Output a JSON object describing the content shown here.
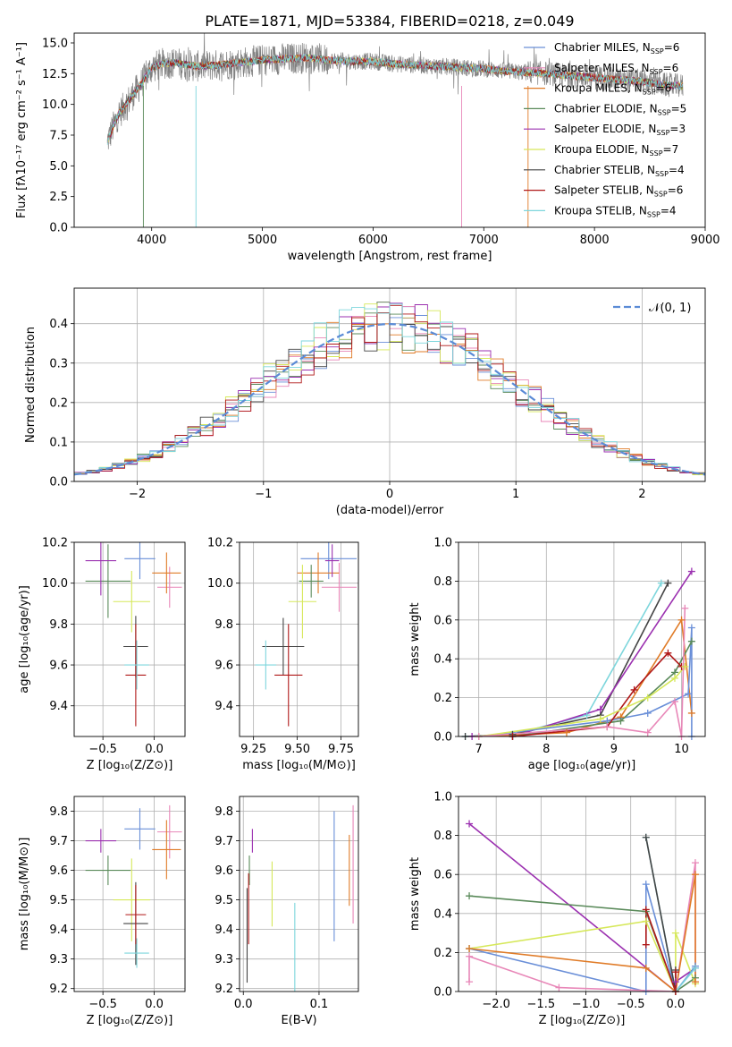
{
  "colors": {
    "Chabrier MILES": "#6a8fd8",
    "Salpeter MILES": "#e887b8",
    "Kroupa MILES": "#e07b27",
    "Chabrier ELODIE": "#5a8a5a",
    "Salpeter ELODIE": "#9b30b0",
    "Kroupa ELODIE": "#d6e85a",
    "Chabrier STELIB": "#444444",
    "Salpeter STELIB": "#b01818",
    "Kroupa STELIB": "#7dd6dc",
    "data": "#808080",
    "normal": "#5b8bd6"
  },
  "chart_data": [
    {
      "type": "line",
      "title": "PLATE=1871, MJD=53384, FIBERID=0218, z=0.049",
      "xlabel": "wavelength [Angstrom, rest frame]",
      "ylabel": "Flux [fλ10⁻¹⁷ erg cm⁻² s⁻¹ A⁻¹]",
      "xlim": [
        3300,
        9000
      ],
      "ylim": [
        0,
        15.8
      ],
      "xticks": [
        4000,
        5000,
        6000,
        7000,
        8000,
        9000
      ],
      "yticks": [
        0.0,
        2.5,
        5.0,
        7.5,
        10.0,
        12.5,
        15.0
      ],
      "grid": false,
      "legend_position": "top-right",
      "legend": [
        {
          "name": "Chabrier MILES",
          "n": "6"
        },
        {
          "name": "Salpeter MILES",
          "n": "6"
        },
        {
          "name": "Kroupa MILES",
          "n": "6"
        },
        {
          "name": "Chabrier ELODIE",
          "n": "5"
        },
        {
          "name": "Salpeter ELODIE",
          "n": "3"
        },
        {
          "name": "Kroupa ELODIE",
          "n": "7"
        },
        {
          "name": "Chabrier STELIB",
          "n": "4"
        },
        {
          "name": "Salpeter STELIB",
          "n": "6"
        },
        {
          "name": "Kroupa STELIB",
          "n": "4"
        }
      ],
      "continuum": {
        "x": [
          3600,
          3700,
          3800,
          3900,
          4000,
          4100,
          4200,
          4400,
          4600,
          4800,
          5000,
          5200,
          5400,
          5600,
          5800,
          6000,
          6200,
          6400,
          6600,
          6800,
          7000,
          7200,
          7400,
          7600,
          7800,
          8000,
          8200,
          8400,
          8600,
          8800
        ],
        "y": [
          7.0,
          9.2,
          10.4,
          11.6,
          13.0,
          13.3,
          13.4,
          13.1,
          13.2,
          13.4,
          13.6,
          13.7,
          13.8,
          13.6,
          13.5,
          13.5,
          13.3,
          13.2,
          13.1,
          13.0,
          12.9,
          12.7,
          12.6,
          12.5,
          12.3,
          12.2,
          12.0,
          11.9,
          11.6,
          11.5
        ]
      }
    },
    {
      "type": "step",
      "xlabel": "(data-model)/error",
      "ylabel": "Normed distribution",
      "xlim": [
        -2.5,
        2.5
      ],
      "ylim": [
        0,
        0.49
      ],
      "xticks": [
        -2,
        -1,
        0,
        1,
        2
      ],
      "yticks": [
        0.0,
        0.1,
        0.2,
        0.3,
        0.4
      ],
      "grid": true,
      "legend": "𝒩(0, 1)",
      "legend_position": "top-right",
      "bin_width": 0.1
    },
    {
      "type": "errorbar",
      "xlabel": "Z [log₁₀(Z/Z⊙)]",
      "ylabel": "age  [log₁₀(age/yr)]",
      "xlim": [
        -0.78,
        0.3
      ],
      "ylim": [
        9.25,
        10.2
      ],
      "xticks": [
        -0.5,
        0.0
      ],
      "yticks": [
        9.4,
        9.6,
        9.8,
        10.0,
        10.2
      ],
      "grid": true,
      "points": [
        {
          "series": "Chabrier MILES",
          "x": -0.14,
          "xerr": 0.15,
          "y": 10.12,
          "yerr": 0.1
        },
        {
          "series": "Salpeter MILES",
          "x": 0.15,
          "xerr": 0.12,
          "y": 9.98,
          "yerr": 0.1
        },
        {
          "series": "Kroupa MILES",
          "x": 0.12,
          "xerr": 0.14,
          "y": 10.05,
          "yerr": 0.1
        },
        {
          "series": "Chabrier ELODIE",
          "x": -0.45,
          "xerr": 0.22,
          "y": 10.01,
          "yerr": 0.18
        },
        {
          "series": "Salpeter ELODIE",
          "x": -0.52,
          "xerr": 0.15,
          "y": 10.11,
          "yerr": 0.17
        },
        {
          "series": "Kroupa ELODIE",
          "x": -0.22,
          "xerr": 0.18,
          "y": 9.91,
          "yerr": 0.15
        },
        {
          "series": "Chabrier STELIB",
          "x": -0.18,
          "xerr": 0.12,
          "y": 9.69,
          "yerr": 0.15
        },
        {
          "series": "Salpeter STELIB",
          "x": -0.18,
          "xerr": 0.1,
          "y": 9.55,
          "yerr": 0.25
        },
        {
          "series": "Kroupa STELIB",
          "x": -0.17,
          "xerr": 0.12,
          "y": 9.6,
          "yerr": 0.12
        }
      ]
    },
    {
      "type": "errorbar",
      "xlabel": "mass [log₁₀(M/M⊙)]",
      "xlim": [
        9.17,
        9.85
      ],
      "ylim": [
        9.25,
        10.2
      ],
      "xticks": [
        9.25,
        9.5,
        9.75
      ],
      "yticks": [
        9.4,
        9.6,
        9.8,
        10.0,
        10.2
      ],
      "grid": true,
      "points": [
        {
          "series": "Chabrier MILES",
          "x": 9.68,
          "xerr": 0.16,
          "y": 10.12,
          "yerr": 0.1
        },
        {
          "series": "Salpeter MILES",
          "x": 9.74,
          "xerr": 0.1,
          "y": 9.98,
          "yerr": 0.12
        },
        {
          "series": "Kroupa MILES",
          "x": 9.62,
          "xerr": 0.12,
          "y": 10.05,
          "yerr": 0.1
        },
        {
          "series": "Chabrier ELODIE",
          "x": 9.58,
          "xerr": 0.07,
          "y": 10.01,
          "yerr": 0.08
        },
        {
          "series": "Salpeter ELODIE",
          "x": 9.7,
          "xerr": 0.04,
          "y": 10.11,
          "yerr": 0.08
        },
        {
          "series": "Kroupa ELODIE",
          "x": 9.53,
          "xerr": 0.08,
          "y": 9.91,
          "yerr": 0.18
        },
        {
          "series": "Chabrier STELIB",
          "x": 9.42,
          "xerr": 0.12,
          "y": 9.69,
          "yerr": 0.14
        },
        {
          "series": "Salpeter STELIB",
          "x": 9.45,
          "xerr": 0.08,
          "y": 9.55,
          "yerr": 0.25
        },
        {
          "series": "Kroupa STELIB",
          "x": 9.32,
          "xerr": 0.06,
          "y": 9.6,
          "yerr": 0.12
        }
      ]
    },
    {
      "type": "line",
      "xlabel": "age  [log₁₀(age/yr)]",
      "ylabel": "mass weight",
      "xlim": [
        6.7,
        10.35
      ],
      "ylim": [
        0,
        1.0
      ],
      "xticks": [
        7,
        8,
        9,
        10
      ],
      "yticks": [
        0.0,
        0.2,
        0.4,
        0.6,
        0.8,
        1.0
      ],
      "grid": true,
      "series": [
        {
          "name": "Kroupa STELIB",
          "x": [
            6.8,
            7.5,
            8.6,
            9.7
          ],
          "y": [
            0.0,
            0.01,
            0.11,
            0.79
          ]
        },
        {
          "name": "Chabrier STELIB",
          "x": [
            6.8,
            7.5,
            8.8,
            9.8
          ],
          "y": [
            0.0,
            0.01,
            0.11,
            0.79
          ]
        },
        {
          "name": "Salpeter ELODIE",
          "x": [
            6.9,
            7.5,
            8.8,
            10.15
          ],
          "y": [
            0.0,
            0.0,
            0.14,
            0.85
          ]
        },
        {
          "name": "Kroupa MILES",
          "x": [
            7.0,
            8.3,
            9.1,
            10.0,
            10.15
          ],
          "y": [
            0.0,
            0.02,
            0.1,
            0.6,
            0.12
          ]
        },
        {
          "name": "Chabrier MILES",
          "x": [
            7.0,
            8.9,
            9.5,
            10.1,
            10.15,
            10.15
          ],
          "y": [
            0.0,
            0.08,
            0.12,
            0.22,
            0.56,
            0.0
          ]
        },
        {
          "name": "Chabrier ELODIE",
          "x": [
            7.5,
            9.1,
            9.9,
            10.15
          ],
          "y": [
            0.0,
            0.08,
            0.33,
            0.49
          ]
        },
        {
          "name": "Salpeter STELIB",
          "x": [
            7.5,
            8.9,
            9.3,
            9.8,
            10.0
          ],
          "y": [
            0.0,
            0.05,
            0.24,
            0.43,
            0.36
          ]
        },
        {
          "name": "Kroupa ELODIE",
          "x": [
            7.0,
            8.8,
            9.5,
            9.9,
            10.05
          ],
          "y": [
            0.0,
            0.09,
            0.2,
            0.3,
            0.36
          ]
        },
        {
          "name": "Salpeter MILES",
          "x": [
            7.0,
            8.9,
            9.5,
            9.9,
            10.0,
            10.05
          ],
          "y": [
            0.0,
            0.05,
            0.02,
            0.18,
            0.0,
            0.66
          ]
        }
      ]
    },
    {
      "type": "errorbar",
      "xlabel": "Z [log₁₀(Z/Z⊙)]",
      "ylabel": "mass [log₁₀(M/M⊙)]",
      "xlim": [
        -0.78,
        0.3
      ],
      "ylim": [
        9.19,
        9.85
      ],
      "xticks": [
        -0.5,
        0.0
      ],
      "yticks": [
        9.2,
        9.3,
        9.4,
        9.5,
        9.6,
        9.7,
        9.8
      ],
      "grid": true,
      "points": [
        {
          "series": "Chabrier MILES",
          "x": -0.14,
          "xerr": 0.15,
          "y": 9.74,
          "yerr": 0.07
        },
        {
          "series": "Salpeter MILES",
          "x": 0.15,
          "xerr": 0.12,
          "y": 9.73,
          "yerr": 0.09
        },
        {
          "series": "Kroupa MILES",
          "x": 0.12,
          "xerr": 0.14,
          "y": 9.67,
          "yerr": 0.1
        },
        {
          "series": "Chabrier ELODIE",
          "x": -0.45,
          "xerr": 0.22,
          "y": 9.6,
          "yerr": 0.05
        },
        {
          "series": "Salpeter ELODIE",
          "x": -0.52,
          "xerr": 0.15,
          "y": 9.7,
          "yerr": 0.04
        },
        {
          "series": "Kroupa ELODIE",
          "x": -0.22,
          "xerr": 0.18,
          "y": 9.5,
          "yerr": 0.14
        },
        {
          "series": "Chabrier STELIB",
          "x": -0.18,
          "xerr": 0.12,
          "y": 9.42,
          "yerr": 0.14
        },
        {
          "series": "Salpeter STELIB",
          "x": -0.18,
          "xerr": 0.1,
          "y": 9.45,
          "yerr": 0.1
        },
        {
          "series": "Kroupa STELIB",
          "x": -0.17,
          "xerr": 0.12,
          "y": 9.32,
          "yerr": 0.05
        }
      ]
    },
    {
      "type": "errorbar",
      "xlabel": "E(B-V)",
      "xlim": [
        -0.005,
        0.152
      ],
      "ylim": [
        9.19,
        9.85
      ],
      "xticks": [
        0.0,
        0.1
      ],
      "yticks": [
        9.2,
        9.3,
        9.4,
        9.5,
        9.6,
        9.7,
        9.8
      ],
      "grid": true,
      "points": [
        {
          "series": "Chabrier MILES",
          "x": 0.12,
          "y": 9.58,
          "yerr": 0.22
        },
        {
          "series": "Salpeter MILES",
          "x": 0.145,
          "y": 9.62,
          "yerr": 0.2
        },
        {
          "series": "Kroupa MILES",
          "x": 0.14,
          "y": 9.6,
          "yerr": 0.12
        },
        {
          "series": "Chabrier ELODIE",
          "x": 0.008,
          "y": 9.6,
          "yerr": 0.05
        },
        {
          "series": "Salpeter ELODIE",
          "x": 0.012,
          "y": 9.7,
          "yerr": 0.04
        },
        {
          "series": "Kroupa ELODIE",
          "x": 0.038,
          "y": 9.52,
          "yerr": 0.11
        },
        {
          "series": "Chabrier STELIB",
          "x": 0.005,
          "y": 9.38,
          "yerr": 0.16
        },
        {
          "series": "Salpeter STELIB",
          "x": 0.007,
          "y": 9.47,
          "yerr": 0.12
        },
        {
          "series": "Kroupa STELIB",
          "x": 0.068,
          "y": 9.32,
          "yerr": 0.17
        }
      ]
    },
    {
      "type": "line",
      "xlabel": "Z [log₁₀(Z/Z⊙)]",
      "ylabel": "mass weight",
      "xlim": [
        -2.42,
        0.33
      ],
      "ylim": [
        0,
        1.0
      ],
      "xticks": [
        -2.0,
        -1.5,
        -1.0,
        -0.5,
        0.0
      ],
      "yticks": [
        0.0,
        0.2,
        0.4,
        0.6,
        0.8,
        1.0
      ],
      "grid": true,
      "series": [
        {
          "name": "Salpeter ELODIE",
          "x": [
            -2.3,
            0.0,
            0.0,
            0.22
          ],
          "y": [
            0.86,
            0.0,
            0.05,
            0.12
          ]
        },
        {
          "name": "Chabrier ELODIE",
          "x": [
            -2.3,
            -0.33,
            0.0,
            0.22
          ],
          "y": [
            0.49,
            0.41,
            0.0,
            0.07
          ]
        },
        {
          "name": "Kroupa ELODIE",
          "x": [
            -2.3,
            -0.33,
            0.0,
            0.0,
            0.22
          ],
          "y": [
            0.22,
            0.36,
            0.0,
            0.3,
            0.04
          ]
        },
        {
          "name": "Chabrier MILES",
          "x": [
            -2.3,
            -0.33,
            -0.33,
            0.0,
            0.22
          ],
          "y": [
            0.22,
            0.0,
            0.55,
            0.0,
            0.13
          ]
        },
        {
          "name": "Salpeter MILES",
          "x": [
            -2.3,
            -2.3,
            -1.3,
            0.0,
            0.22,
            0.22
          ],
          "y": [
            0.05,
            0.18,
            0.02,
            0.0,
            0.66,
            0.05
          ]
        },
        {
          "name": "Kroupa MILES",
          "x": [
            -2.3,
            -0.33,
            0.0,
            0.22,
            0.22
          ],
          "y": [
            0.22,
            0.12,
            0.0,
            0.6,
            0.05
          ]
        },
        {
          "name": "Kroupa STELIB",
          "x": [
            -0.33,
            0.0,
            0.22
          ],
          "y": [
            0.79,
            0.0,
            0.12
          ]
        },
        {
          "name": "Chabrier STELIB",
          "x": [
            -0.33,
            0.0,
            0.0
          ],
          "y": [
            0.79,
            0.0,
            0.11
          ]
        },
        {
          "name": "Salpeter STELIB",
          "x": [
            -0.33,
            -0.33,
            0.0,
            0.0
          ],
          "y": [
            0.24,
            0.42,
            0.0,
            0.1
          ]
        }
      ]
    }
  ]
}
